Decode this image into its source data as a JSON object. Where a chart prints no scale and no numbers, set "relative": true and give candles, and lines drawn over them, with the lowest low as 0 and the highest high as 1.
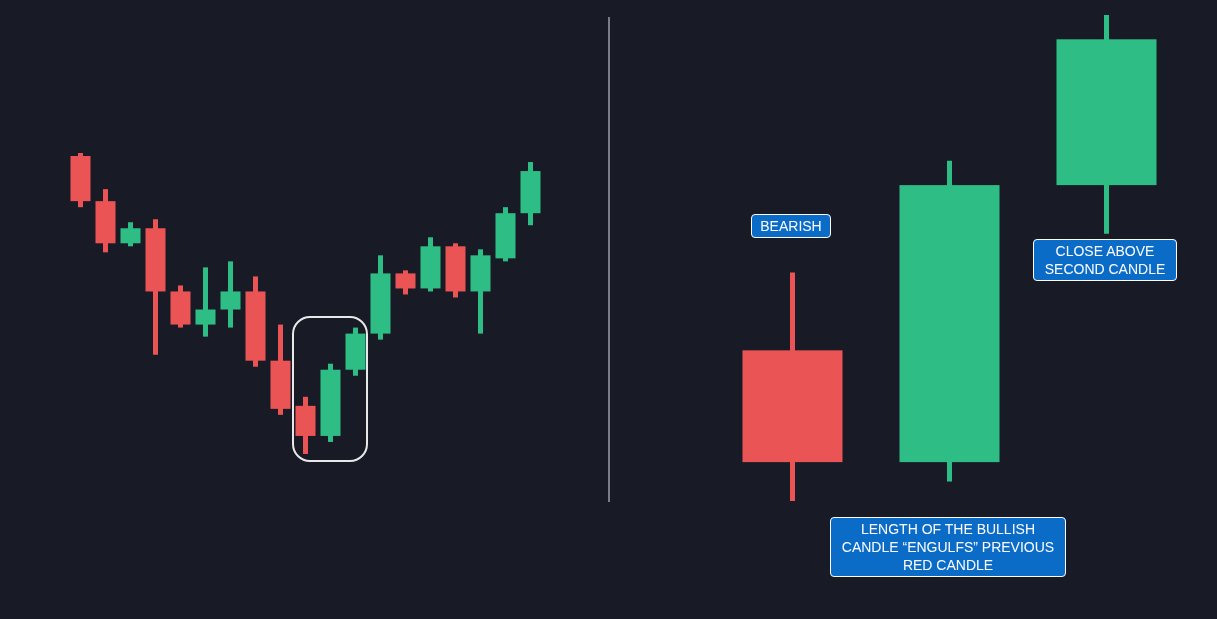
{
  "chart_data": [
    {
      "type": "candlestick",
      "relative": true,
      "categories": [
        null,
        null,
        null,
        null,
        null,
        null,
        null,
        null,
        null,
        null,
        null,
        null,
        null,
        null,
        null,
        null,
        null,
        null,
        null
      ],
      "ohlc": [
        [
          0.99,
          1,
          0.82,
          0.84
        ],
        [
          0.84,
          0.88,
          0.67,
          0.7
        ],
        [
          0.7,
          0.77,
          0.69,
          0.75
        ],
        [
          0.75,
          0.78,
          0.33,
          0.54
        ],
        [
          0.54,
          0.56,
          0.42,
          0.43
        ],
        [
          0.43,
          0.62,
          0.39,
          0.48
        ],
        [
          0.48,
          0.64,
          0.42,
          0.54
        ],
        [
          0.54,
          0.59,
          0.29,
          0.31
        ],
        [
          0.31,
          0.43,
          0.13,
          0.15
        ],
        [
          0.16,
          0.19,
          0,
          0.06
        ],
        [
          0.06,
          0.3,
          0.04,
          0.28
        ],
        [
          0.28,
          0.42,
          0.26,
          0.4
        ],
        [
          0.4,
          0.66,
          0.38,
          0.6
        ],
        [
          0.6,
          0.61,
          0.53,
          0.55
        ],
        [
          0.55,
          0.72,
          0.54,
          0.69
        ],
        [
          0.69,
          0.7,
          0.52,
          0.54
        ],
        [
          0.54,
          0.68,
          0.4,
          0.66
        ],
        [
          0.65,
          0.82,
          0.64,
          0.8
        ],
        [
          0.8,
          0.97,
          0.76,
          0.94
        ]
      ],
      "colors": [
        "#eb5454",
        "#eb5454",
        "#2ebd85",
        "#eb5454",
        "#eb5454",
        "#2ebd85",
        "#2ebd85",
        "#eb5454",
        "#eb5454",
        "#eb5454",
        "#2ebd85",
        "#2ebd85",
        "#2ebd85",
        "#eb5454",
        "#2ebd85",
        "#eb5454",
        "#2ebd85",
        "#2ebd85",
        "#2ebd85"
      ]
    },
    {
      "type": "candlestick",
      "relative": true,
      "categories": [
        null,
        null,
        null
      ],
      "ohlc": [
        [
          0.31,
          0.47,
          0,
          0.08
        ],
        [
          0.08,
          0.7,
          0.04,
          0.65
        ],
        [
          0.65,
          1,
          0.55,
          0.95
        ]
      ],
      "colors": [
        "#eb5454",
        "#2ebd85",
        "#2ebd85"
      ],
      "annotations": [
        "BEARISH",
        "LENGTH OF THE BULLISH CANDLE “ENGULFS” PREVIOUS RED CANDLE",
        "CLOSE ABOVE SECOND CANDLE"
      ]
    }
  ]
}
